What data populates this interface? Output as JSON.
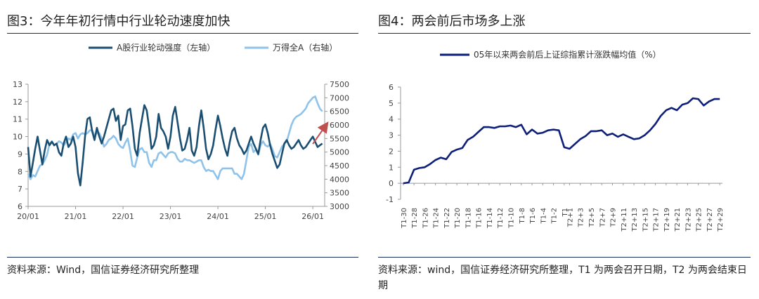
{
  "chart_data": [
    {
      "type": "line",
      "title": "图3：今年年初行情中行业轮动速度加快",
      "source": "资料来源：Wind，国信证券经济研究所整理",
      "x_ticks": [
        "20/01",
        "21/01",
        "22/01",
        "23/01",
        "24/01",
        "25/01",
        "26/01"
      ],
      "y_left_ticks": [
        "6",
        "7",
        "8",
        "9",
        "10",
        "11",
        "12",
        "13"
      ],
      "y_right_ticks": [
        "3000",
        "3500",
        "4000",
        "4500",
        "5000",
        "5500",
        "6000",
        "6500",
        "7000",
        "7500"
      ],
      "ylim_left": [
        6,
        13
      ],
      "ylim_right": [
        3000,
        7500
      ],
      "legend_position": "top",
      "series": [
        {
          "name": "A股行业轮动强度（左轴）",
          "axis": "left",
          "color": "#1b4f72",
          "x": [
            2020.0,
            2020.05,
            2020.1,
            2020.15,
            2020.2,
            2020.25,
            2020.3,
            2020.35,
            2020.4,
            2020.45,
            2020.5,
            2020.55,
            2020.6,
            2020.65,
            2020.7,
            2020.75,
            2020.8,
            2020.85,
            2020.9,
            2020.95,
            2021.0,
            2021.05,
            2021.1,
            2021.15,
            2021.2,
            2021.25,
            2021.3,
            2021.35,
            2021.4,
            2021.45,
            2021.5,
            2021.55,
            2021.6,
            2021.65,
            2021.7,
            2021.75,
            2021.8,
            2021.85,
            2021.9,
            2021.95,
            2022.0,
            2022.05,
            2022.1,
            2022.15,
            2022.2,
            2022.25,
            2022.3,
            2022.35,
            2022.4,
            2022.45,
            2022.5,
            2022.55,
            2022.6,
            2022.65,
            2022.7,
            2022.75,
            2022.8,
            2022.85,
            2022.9,
            2022.95,
            2023.0,
            2023.05,
            2023.1,
            2023.15,
            2023.2,
            2023.25,
            2023.3,
            2023.35,
            2023.4,
            2023.45,
            2023.5,
            2023.55,
            2023.6,
            2023.65,
            2023.7,
            2023.75,
            2023.8,
            2023.85,
            2023.9,
            2023.95,
            2024.0,
            2024.05,
            2024.1,
            2024.15,
            2024.2,
            2024.25,
            2024.3,
            2024.35,
            2024.4,
            2024.45,
            2024.5,
            2024.55,
            2024.6,
            2024.65,
            2024.7,
            2024.75,
            2024.8,
            2024.85,
            2024.9,
            2024.95,
            2025.0,
            2025.05,
            2025.1,
            2025.15,
            2025.2,
            2025.25,
            2025.3,
            2025.35,
            2025.4,
            2025.45,
            2025.5,
            2025.55,
            2025.6,
            2025.65,
            2025.7,
            2025.75,
            2025.8,
            2025.85,
            2025.9,
            2025.95,
            2026.0,
            2026.05,
            2026.1,
            2026.15,
            2026.2
          ],
          "values": [
            9.4,
            7.7,
            8.5,
            9.3,
            10.0,
            9.2,
            8.4,
            9.2,
            9.8,
            9.5,
            9.7,
            9.5,
            9.6,
            9.1,
            8.9,
            9.6,
            10.0,
            9.4,
            9.6,
            10.0,
            9.4,
            7.9,
            7.2,
            8.5,
            10.0,
            11.0,
            11.1,
            10.3,
            9.8,
            10.5,
            10.0,
            9.6,
            10.0,
            10.5,
            11.0,
            11.5,
            11.6,
            10.9,
            11.2,
            9.8,
            10.6,
            10.7,
            11.5,
            11.6,
            10.6,
            9.3,
            8.9,
            10.2,
            11.0,
            11.8,
            11.5,
            10.5,
            9.3,
            9.5,
            10.0,
            11.3,
            10.5,
            10.3,
            10.0,
            9.3,
            10.0,
            11.2,
            11.7,
            10.8,
            9.9,
            9.2,
            9.3,
            9.8,
            10.5,
            9.2,
            8.9,
            9.4,
            10.6,
            11.5,
            10.5,
            9.3,
            8.7,
            9.0,
            9.5,
            10.4,
            11.2,
            10.6,
            9.9,
            9.3,
            8.9,
            9.7,
            10.3,
            10.5,
            9.9,
            9.5,
            9.3,
            9.0,
            9.2,
            9.6,
            10.0,
            9.6,
            9.3,
            9.0,
            9.8,
            10.5,
            10.7,
            10.2,
            9.5,
            9.0,
            8.6,
            8.2,
            8.4,
            9.0,
            9.6,
            9.8,
            9.5,
            9.3,
            9.4,
            9.6,
            9.8,
            9.5,
            9.3,
            9.4,
            9.6,
            9.8,
            10.0,
            9.7,
            9.4,
            9.5,
            9.6
          ]
        },
        {
          "name": "万得全A（右轴）",
          "axis": "right",
          "color": "#8fc3ea",
          "x": [
            2020.0,
            2020.05,
            2020.1,
            2020.15,
            2020.2,
            2020.25,
            2020.3,
            2020.35,
            2020.4,
            2020.45,
            2020.5,
            2020.55,
            2020.6,
            2020.65,
            2020.7,
            2020.75,
            2020.8,
            2020.85,
            2020.9,
            2020.95,
            2021.0,
            2021.05,
            2021.1,
            2021.15,
            2021.2,
            2021.25,
            2021.3,
            2021.35,
            2021.4,
            2021.45,
            2021.5,
            2021.55,
            2021.6,
            2021.65,
            2021.7,
            2021.75,
            2021.8,
            2021.85,
            2021.9,
            2021.95,
            2022.0,
            2022.05,
            2022.1,
            2022.15,
            2022.2,
            2022.25,
            2022.3,
            2022.35,
            2022.4,
            2022.45,
            2022.5,
            2022.55,
            2022.6,
            2022.65,
            2022.7,
            2022.75,
            2022.8,
            2022.85,
            2022.9,
            2022.95,
            2023.0,
            2023.05,
            2023.1,
            2023.15,
            2023.2,
            2023.25,
            2023.3,
            2023.35,
            2023.4,
            2023.45,
            2023.5,
            2023.55,
            2023.6,
            2023.65,
            2023.7,
            2023.75,
            2023.8,
            2023.85,
            2023.9,
            2023.95,
            2024.0,
            2024.05,
            2024.1,
            2024.15,
            2024.2,
            2024.25,
            2024.3,
            2024.35,
            2024.4,
            2024.45,
            2024.5,
            2024.55,
            2024.6,
            2024.65,
            2024.7,
            2024.75,
            2024.8,
            2024.85,
            2024.9,
            2024.95,
            2025.0,
            2025.05,
            2025.1,
            2025.15,
            2025.2,
            2025.25,
            2025.3,
            2025.35,
            2025.4,
            2025.45,
            2025.5,
            2025.55,
            2025.6,
            2025.65,
            2025.7,
            2025.75,
            2025.8,
            2025.85,
            2025.9,
            2025.95,
            2026.0,
            2026.05,
            2026.1,
            2026.15,
            2026.2
          ],
          "values": [
            4200,
            4000,
            4150,
            4100,
            4300,
            4500,
            4550,
            4700,
            4900,
            5300,
            5400,
            5250,
            5300,
            5400,
            5350,
            5250,
            5350,
            5500,
            5450,
            5650,
            5700,
            5500,
            5650,
            5700,
            5650,
            5700,
            5800,
            5800,
            5600,
            5700,
            5700,
            5500,
            5200,
            5300,
            5450,
            5500,
            5600,
            5500,
            5300,
            5200,
            5150,
            5350,
            5500,
            5050,
            4500,
            4450,
            4800,
            5100,
            5150,
            5000,
            5000,
            4600,
            4450,
            4700,
            4700,
            4950,
            5000,
            4900,
            4800,
            4950,
            5000,
            5000,
            4950,
            4750,
            4650,
            4650,
            4750,
            4700,
            4700,
            4650,
            4600,
            4650,
            4700,
            4700,
            4450,
            4300,
            4350,
            4300,
            4300,
            4150,
            4000,
            4300,
            4400,
            4400,
            4400,
            4400,
            4400,
            4200,
            4200,
            4100,
            4000,
            4200,
            4700,
            5200,
            5300,
            5000,
            5100,
            4900,
            5250,
            5400,
            5250,
            5200,
            5300,
            5100,
            4850,
            4800,
            5000,
            5200,
            5300,
            5400,
            5700,
            6000,
            6200,
            6300,
            6350,
            6400,
            6500,
            6600,
            6800,
            6900,
            7000,
            7050,
            6800,
            6600,
            6500
          ]
        }
      ]
    },
    {
      "type": "line",
      "title": "图4：两会前后市场多上涨",
      "source": "资料来源：wind，国信证券经济研究所整理，T1 为两会召开日期，T2 为两会结束日期",
      "ylim": [
        -1,
        6
      ],
      "y_ticks": [
        "-1",
        "0",
        "1",
        "2",
        "3",
        "4",
        "5",
        "6"
      ],
      "categories": [
        "T1-30",
        "T1-29",
        "T1-28",
        "T1-27",
        "T1-26",
        "T1-25",
        "T1-24",
        "T1-23",
        "T1-22",
        "T1-21",
        "T1-20",
        "T1-19",
        "T1-18",
        "T1-17",
        "T1-16",
        "T1-15",
        "T1-14",
        "T1-13",
        "T1-12",
        "T1-11",
        "T1-10",
        "T1-9",
        "T1-8",
        "T1-7",
        "T1-6",
        "T1-5",
        "T1-4",
        "T1-3",
        "T1-2",
        "T1-1",
        "T1",
        "T2+1",
        "T2+2",
        "T2+3",
        "T2+4",
        "T2+5",
        "T2+6",
        "T2+7",
        "T2+8",
        "T2+9",
        "T2+10",
        "T2+11",
        "T2+12",
        "T2+13",
        "T2+14",
        "T2+15",
        "T2+16",
        "T2+17",
        "T2+18",
        "T2+19",
        "T2+20",
        "T2+21",
        "T2+22",
        "T2+23",
        "T2+24",
        "T2+25",
        "T2+26",
        "T2+27",
        "T2+28",
        "T2+29"
      ],
      "x_tick_labels": [
        "T1-30",
        "T1-28",
        "T1-26",
        "T1-24",
        "T1-22",
        "T1-20",
        "T1-18",
        "T1-16",
        "T1-14",
        "T1-12",
        "T1-10",
        "T1-8",
        "T1-6",
        "T1-4",
        "T1-2",
        "T1",
        "T2+1",
        "T2+3",
        "T2+5",
        "T2+7",
        "T2+9",
        "T2+11",
        "T2+13",
        "T2+15",
        "T2+17",
        "T2+19",
        "T2+21",
        "T2+23",
        "T2+25",
        "T2+27",
        "T2+29"
      ],
      "legend_position": "top",
      "series": [
        {
          "name": "05年以来两会前后上证综指累计涨跌幅均值（%）",
          "color": "#0e1f7a",
          "values": [
            0.0,
            0.05,
            0.85,
            0.95,
            1.0,
            1.2,
            1.45,
            1.6,
            1.5,
            1.95,
            2.1,
            2.2,
            2.7,
            2.9,
            3.2,
            3.5,
            3.5,
            3.45,
            3.55,
            3.55,
            3.6,
            3.5,
            3.65,
            3.05,
            3.35,
            3.1,
            3.15,
            3.3,
            3.35,
            3.3,
            2.25,
            2.15,
            2.45,
            2.75,
            2.95,
            3.25,
            3.25,
            3.3,
            3.0,
            3.1,
            2.9,
            3.05,
            2.9,
            2.75,
            2.8,
            3.0,
            3.3,
            3.7,
            4.2,
            4.55,
            4.7,
            4.55,
            4.9,
            5.0,
            5.3,
            5.25,
            4.85,
            5.1,
            5.25,
            5.25
          ]
        }
      ]
    }
  ]
}
